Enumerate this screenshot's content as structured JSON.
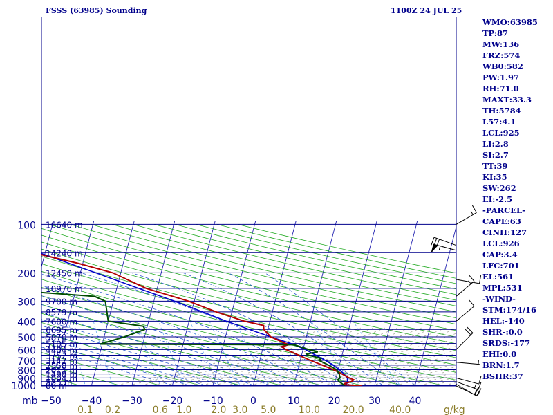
{
  "chart_data": {
    "type": "skew-t",
    "title": "FSSS (63985) Sounding",
    "valid_time": "1100Z 24 JUL 25",
    "pressure_unit": "mb",
    "mixing_ratio_unit": "g/kg",
    "pressure_levels": [
      100,
      200,
      300,
      400,
      500,
      600,
      700,
      800,
      900,
      1000
    ],
    "temperature_ticks": [
      -50,
      -40,
      -30,
      -20,
      -10,
      0,
      10,
      20,
      30,
      40
    ],
    "mixing_ratio_labels": [
      "0.1",
      "0.2",
      "0.6",
      "1.0",
      "2.0",
      "3.0",
      "5.0",
      "10.0",
      "20.0",
      "40.0"
    ],
    "mixing_ratio_values": [
      0.1,
      0.2,
      0.6,
      1.0,
      2.0,
      3.0,
      5.0,
      10.0,
      20.0,
      40.0
    ],
    "height_labels": [
      {
        "p": 100,
        "text": "16640 m"
      },
      {
        "p": 150,
        "text": "14240 m"
      },
      {
        "p": 200,
        "text": "12450 m"
      },
      {
        "p": 250,
        "text": "10970 m"
      },
      {
        "p": 300,
        "text": "9700 m"
      },
      {
        "p": 350,
        "text": "8579 m"
      },
      {
        "p": 400,
        "text": "7600 m"
      },
      {
        "p": 450,
        "text": "6695 m"
      },
      {
        "p": 500,
        "text": "5870 m"
      },
      {
        "p": 550,
        "text": "5105 m"
      },
      {
        "p": 600,
        "text": "4404 m"
      },
      {
        "p": 650,
        "text": "3752 m"
      },
      {
        "p": 700,
        "text": "3142 m"
      },
      {
        "p": 750,
        "text": "2558 m"
      },
      {
        "p": 800,
        "text": "2011 m"
      },
      {
        "p": 850,
        "text": "1498 m"
      },
      {
        "p": 900,
        "text": "1004 m"
      },
      {
        "p": 950,
        "text": "535 m"
      },
      {
        "p": 1000,
        "text": "86 m"
      }
    ],
    "temperature_profile": [
      [
        1013,
        27.0
      ],
      [
        1000,
        24.5
      ],
      [
        990,
        22.3
      ],
      [
        975,
        22.5
      ],
      [
        950,
        24.0
      ],
      [
        925,
        24.5
      ],
      [
        900,
        23.2
      ],
      [
        850,
        21.2
      ],
      [
        800,
        18.8
      ],
      [
        750,
        15.8
      ],
      [
        700,
        12.5
      ],
      [
        650,
        9.3
      ],
      [
        600,
        5.8
      ],
      [
        575,
        4.5
      ],
      [
        560,
        6.1
      ],
      [
        550,
        5.3
      ],
      [
        500,
        1.2
      ],
      [
        450,
        -1.0
      ],
      [
        425,
        -1.3
      ],
      [
        400,
        -6.3
      ],
      [
        350,
        -13.9
      ],
      [
        300,
        -21.4
      ],
      [
        250,
        -32.7
      ],
      [
        200,
        -42.0
      ],
      [
        175,
        -51.0
      ],
      [
        150,
        -63.0
      ],
      [
        140,
        -68.4
      ],
      [
        135,
        -65.0
      ],
      [
        125,
        -66.0
      ],
      [
        115,
        -73.0
      ],
      [
        100,
        -79.5
      ]
    ],
    "dewpoint_profile": [
      [
        1013,
        22.5
      ],
      [
        1000,
        22.5
      ],
      [
        950,
        21.0
      ],
      [
        925,
        20.5
      ],
      [
        900,
        21.0
      ],
      [
        850,
        20.5
      ],
      [
        800,
        19.6
      ],
      [
        750,
        17.3
      ],
      [
        700,
        14.6
      ],
      [
        680,
        15.0
      ],
      [
        660,
        12.8
      ],
      [
        650,
        11.6
      ],
      [
        640,
        11.2
      ],
      [
        620,
        13.8
      ],
      [
        600,
        11.4
      ],
      [
        560,
        7.5
      ],
      [
        555,
        -40.5
      ],
      [
        500,
        -35.0
      ],
      [
        450,
        -30.4
      ],
      [
        430,
        -31.0
      ],
      [
        400,
        -40.0
      ],
      [
        300,
        -42.0
      ],
      [
        280,
        -45.0
      ],
      [
        250,
        -73.0
      ],
      [
        220,
        -75.0
      ],
      [
        200,
        -74.0
      ],
      [
        185,
        -74.0
      ],
      [
        180,
        -70.0
      ],
      [
        150,
        -72.8
      ],
      [
        130,
        -78.0
      ],
      [
        120,
        -97.0
      ],
      [
        115,
        -92.0
      ],
      [
        100,
        -80.0
      ]
    ],
    "parcel_profile": [
      [
        1000,
        22.9
      ],
      [
        950,
        23.0
      ],
      [
        900,
        22.8
      ],
      [
        850,
        21.7
      ],
      [
        800,
        20.3
      ],
      [
        750,
        18.4
      ],
      [
        700,
        16.2
      ],
      [
        650,
        13.5
      ],
      [
        600,
        10.6
      ],
      [
        550,
        6.6
      ],
      [
        500,
        1.2
      ],
      [
        450,
        -4.6
      ],
      [
        400,
        -10.8
      ],
      [
        350,
        -17.3
      ],
      [
        300,
        -24.9
      ],
      [
        250,
        -34.6
      ],
      [
        200,
        -46.2
      ],
      [
        150,
        -61.5
      ],
      [
        115,
        -76.1
      ]
    ],
    "wind_barbs": [
      {
        "p": 100,
        "dir": 60,
        "spd": 15
      },
      {
        "p": 135,
        "dir": 290,
        "spd": 30
      },
      {
        "p": 145,
        "dir": 285,
        "spd": 55
      },
      {
        "p": 220,
        "dir": 100,
        "spd": 10
      },
      {
        "p": 280,
        "dir": 50,
        "spd": 15
      },
      {
        "p": 400,
        "dir": 50,
        "spd": 10
      },
      {
        "p": 600,
        "dir": 45,
        "spd": 20
      },
      {
        "p": 720,
        "dir": 95,
        "spd": 5
      },
      {
        "p": 900,
        "dir": 105,
        "spd": 10
      },
      {
        "p": 950,
        "dir": 110,
        "spd": 15
      },
      {
        "p": 985,
        "dir": 120,
        "spd": 20
      },
      {
        "p": 1010,
        "dir": 115,
        "spd": 20
      }
    ],
    "indices": [
      "WMO:63985",
      "TP:87",
      "MW:136",
      "FRZ:574",
      "WB0:582",
      "PW:1.97",
      "RH:71.0",
      "MAXT:33.3",
      "TH:5784",
      "L57:4.1",
      "LCL:925",
      "LI:2.8",
      "SI:2.7",
      "TT:39",
      "KI:35",
      "SW:262",
      "EI:-2.5",
      "-PARCEL-",
      "CAPE:63",
      "CINH:127",
      "LCL:926",
      "CAP:3.4",
      "LFC:701",
      "EL:561",
      "MPL:531",
      "-WIND-",
      "STM:174/16",
      "HEL:-140",
      "SHR-:0.0",
      "SRDS:-177",
      "EHI:0.0",
      "BRN:1.7",
      "BSHR:37"
    ],
    "colors": {
      "isobar": "#00008b",
      "temperature": "#b30000",
      "dewpoint": "#004d00",
      "parcel": "#0000cd",
      "isotherm": "#2020b0",
      "dry_adiabat": "#22aa22",
      "moist_adiabat": "#2255cc",
      "mixing_ratio": "#77b3ee",
      "sat_line": "#999988",
      "tick_label": "#00008b",
      "mr_label": "#8b7d2a",
      "wind": "#000000",
      "text": "#00008b"
    }
  }
}
